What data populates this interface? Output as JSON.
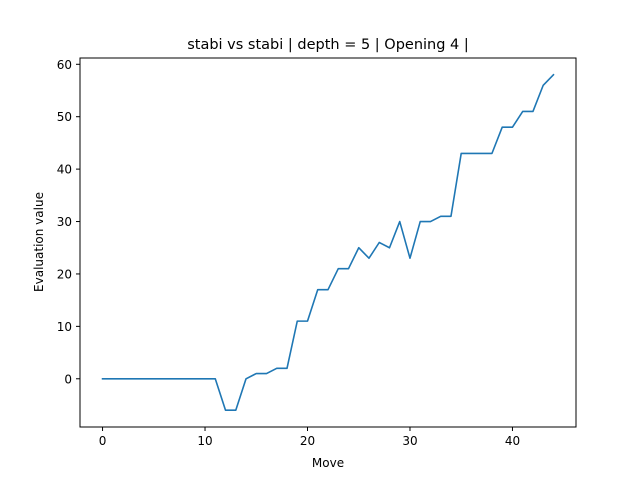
{
  "chart_data": {
    "type": "line",
    "title": "stabi vs stabi | depth = 5 | Opening 4 |",
    "xlabel": "Move",
    "ylabel": "Evaluation value",
    "xlim": [
      -2.2,
      46.2
    ],
    "ylim": [
      -9.2,
      61.2
    ],
    "xticks": [
      0,
      10,
      20,
      30,
      40
    ],
    "yticks": [
      0,
      10,
      20,
      30,
      40,
      50,
      60
    ],
    "grid": false,
    "line_color": "#1f77b4",
    "series": [
      {
        "x": [
          0,
          1,
          2,
          3,
          4,
          5,
          6,
          7,
          8,
          9,
          10,
          11,
          12,
          13,
          14,
          15,
          16,
          17,
          18,
          19,
          20,
          21,
          22,
          23,
          24,
          25,
          26,
          27,
          28,
          29,
          30,
          31,
          32,
          33,
          34,
          35,
          36,
          37,
          38,
          39,
          40,
          41,
          42,
          43,
          44
        ],
        "values": [
          0,
          0,
          0,
          0,
          0,
          0,
          0,
          0,
          0,
          0,
          0,
          0,
          -6,
          -6,
          0,
          1,
          1,
          2,
          2,
          11,
          11,
          17,
          17,
          21,
          21,
          25,
          23,
          26,
          25,
          30,
          23,
          30,
          30,
          31,
          31,
          43,
          43,
          43,
          43,
          48,
          48,
          51,
          51,
          56,
          58
        ]
      }
    ]
  }
}
